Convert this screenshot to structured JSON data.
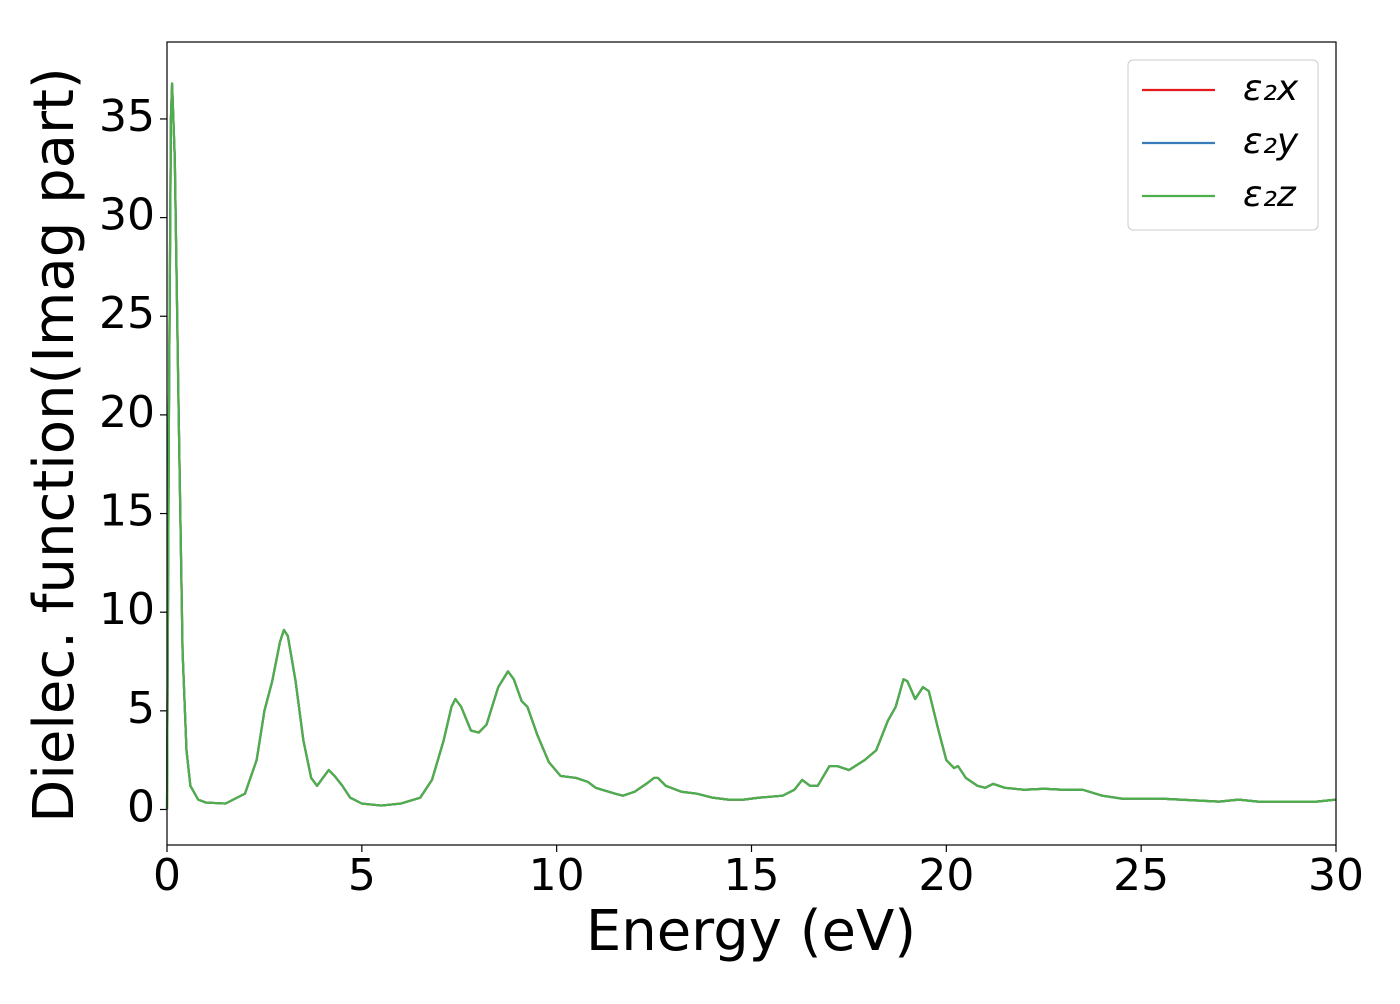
{
  "chart_data": {
    "type": "line",
    "xlabel": "Energy (eV)",
    "ylabel": "Dielec. function(Imag part)",
    "xlim": [
      0,
      30
    ],
    "ylim": [
      -1.8,
      38.9
    ],
    "xticks": [
      0,
      5,
      10,
      15,
      20,
      25,
      30
    ],
    "yticks": [
      0,
      5,
      10,
      15,
      20,
      25,
      30,
      35
    ],
    "legend": "upper right",
    "x": [
      0,
      0.05,
      0.1,
      0.13,
      0.2,
      0.3,
      0.4,
      0.5,
      0.6,
      0.8,
      1.0,
      1.5,
      2.0,
      2.3,
      2.5,
      2.7,
      2.9,
      3.0,
      3.1,
      3.3,
      3.5,
      3.7,
      3.85,
      4.0,
      4.15,
      4.3,
      4.5,
      4.7,
      5.0,
      5.5,
      6.0,
      6.5,
      6.8,
      7.1,
      7.3,
      7.4,
      7.55,
      7.8,
      8.0,
      8.2,
      8.5,
      8.75,
      8.9,
      9.1,
      9.25,
      9.5,
      9.8,
      10.1,
      10.5,
      10.8,
      11.0,
      11.5,
      11.7,
      12.0,
      12.3,
      12.5,
      12.6,
      12.8,
      13.2,
      13.6,
      14.0,
      14.4,
      14.8,
      15.2,
      15.8,
      16.1,
      16.3,
      16.5,
      16.7,
      17.0,
      17.2,
      17.5,
      17.9,
      18.2,
      18.5,
      18.7,
      18.9,
      19.0,
      19.2,
      19.4,
      19.55,
      19.8,
      20.0,
      20.2,
      20.3,
      20.5,
      20.8,
      21.0,
      21.2,
      21.5,
      22.0,
      22.5,
      23.0,
      23.5,
      24.0,
      24.5,
      25.0,
      25.5,
      26.0,
      26.5,
      27.0,
      27.5,
      28.0,
      28.5,
      29.0,
      29.5,
      30
    ],
    "series": [
      {
        "name": "ε₂x",
        "color": "#e41a1c",
        "values": [
          0,
          20,
          35,
          36.8,
          33,
          20,
          8,
          3,
          1.2,
          0.5,
          0.35,
          0.3,
          0.8,
          2.5,
          5.0,
          6.5,
          8.5,
          9.1,
          8.8,
          6.5,
          3.5,
          1.6,
          1.2,
          1.6,
          2.0,
          1.7,
          1.2,
          0.6,
          0.3,
          0.2,
          0.3,
          0.6,
          1.5,
          3.5,
          5.2,
          5.6,
          5.2,
          4.0,
          3.9,
          4.3,
          6.2,
          7.0,
          6.6,
          5.5,
          5.2,
          3.8,
          2.4,
          1.7,
          1.6,
          1.4,
          1.1,
          0.8,
          0.7,
          0.9,
          1.3,
          1.6,
          1.6,
          1.2,
          0.9,
          0.8,
          0.6,
          0.5,
          0.5,
          0.6,
          0.7,
          1.0,
          1.5,
          1.2,
          1.2,
          2.2,
          2.2,
          2.0,
          2.5,
          3.0,
          4.5,
          5.2,
          6.6,
          6.5,
          5.6,
          6.2,
          6.0,
          4.0,
          2.5,
          2.1,
          2.2,
          1.6,
          1.2,
          1.1,
          1.3,
          1.1,
          1.0,
          1.05,
          1.0,
          1.0,
          0.7,
          0.55,
          0.55,
          0.55,
          0.5,
          0.45,
          0.4,
          0.5,
          0.4,
          0.4,
          0.4,
          0.4,
          0.5
        ]
      },
      {
        "name": "ε₂y",
        "color": "#377eb8",
        "values": [
          0,
          20,
          35,
          36.8,
          33,
          20,
          8,
          3,
          1.2,
          0.5,
          0.35,
          0.3,
          0.8,
          2.5,
          5.0,
          6.5,
          8.5,
          9.1,
          8.8,
          6.5,
          3.5,
          1.6,
          1.2,
          1.6,
          2.0,
          1.7,
          1.2,
          0.6,
          0.3,
          0.2,
          0.3,
          0.6,
          1.5,
          3.5,
          5.2,
          5.6,
          5.2,
          4.0,
          3.9,
          4.3,
          6.2,
          7.0,
          6.6,
          5.5,
          5.2,
          3.8,
          2.4,
          1.7,
          1.6,
          1.4,
          1.1,
          0.8,
          0.7,
          0.9,
          1.3,
          1.6,
          1.6,
          1.2,
          0.9,
          0.8,
          0.6,
          0.5,
          0.5,
          0.6,
          0.7,
          1.0,
          1.5,
          1.2,
          1.2,
          2.2,
          2.2,
          2.0,
          2.5,
          3.0,
          4.5,
          5.2,
          6.6,
          6.5,
          5.6,
          6.2,
          6.0,
          4.0,
          2.5,
          2.1,
          2.2,
          1.6,
          1.2,
          1.1,
          1.3,
          1.1,
          1.0,
          1.05,
          1.0,
          1.0,
          0.7,
          0.55,
          0.55,
          0.55,
          0.5,
          0.45,
          0.4,
          0.5,
          0.4,
          0.4,
          0.4,
          0.4,
          0.5
        ]
      },
      {
        "name": "ε₂z",
        "color": "#4daf4a",
        "values": [
          0,
          20,
          35,
          36.8,
          33,
          20,
          8,
          3,
          1.2,
          0.5,
          0.35,
          0.3,
          0.8,
          2.5,
          5.0,
          6.5,
          8.5,
          9.1,
          8.8,
          6.5,
          3.5,
          1.6,
          1.2,
          1.6,
          2.0,
          1.7,
          1.2,
          0.6,
          0.3,
          0.2,
          0.3,
          0.6,
          1.5,
          3.5,
          5.2,
          5.6,
          5.2,
          4.0,
          3.9,
          4.3,
          6.2,
          7.0,
          6.6,
          5.5,
          5.2,
          3.8,
          2.4,
          1.7,
          1.6,
          1.4,
          1.1,
          0.8,
          0.7,
          0.9,
          1.3,
          1.6,
          1.6,
          1.2,
          0.9,
          0.8,
          0.6,
          0.5,
          0.5,
          0.6,
          0.7,
          1.0,
          1.5,
          1.2,
          1.2,
          2.2,
          2.2,
          2.0,
          2.5,
          3.0,
          4.5,
          5.2,
          6.6,
          6.5,
          5.6,
          6.2,
          6.0,
          4.0,
          2.5,
          2.1,
          2.2,
          1.6,
          1.2,
          1.1,
          1.3,
          1.1,
          1.0,
          1.05,
          1.0,
          1.0,
          0.7,
          0.55,
          0.55,
          0.55,
          0.5,
          0.45,
          0.4,
          0.5,
          0.4,
          0.4,
          0.4,
          0.4,
          0.5
        ]
      }
    ]
  }
}
